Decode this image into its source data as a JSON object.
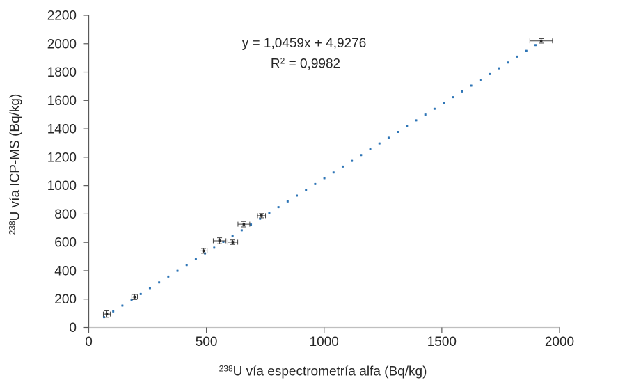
{
  "chart_data": {
    "type": "scatter",
    "title": "",
    "xlabel": "²³⁸U vía espectrometría alfa (Bq/kg)",
    "ylabel": "²³⁸U vía ICP-MS (Bq/kg)",
    "xlabel_sup": "238",
    "xlabel_rest": "U vía espectrometría alfa (Bq/kg)",
    "ylabel_sup": "238",
    "ylabel_rest": "U vía ICP-MS (Bq/kg)",
    "xlim": [
      0,
      2000
    ],
    "ylim": [
      0,
      2200
    ],
    "xticks": [
      0,
      500,
      1000,
      1500,
      2000
    ],
    "yticks": [
      0,
      200,
      400,
      600,
      800,
      1000,
      1200,
      1400,
      1600,
      1800,
      2000,
      2200
    ],
    "grid": false,
    "legend": "none",
    "annotation": {
      "equation": "y = 1,0459x + 4,9276",
      "r_squared": "R² = 0,9982",
      "r2_base": "R",
      "r2_sup": "2",
      "r2_rest": " = 0,9982"
    },
    "trendline": {
      "style": "dotted",
      "color": "#2E75B6",
      "slope": 1.0459,
      "intercept": 4.9276,
      "x_start": 65,
      "x_end": 1898,
      "x_step": 39
    },
    "points": [
      {
        "x": 77,
        "y": 95,
        "xerr": 15,
        "yerr": 23
      },
      {
        "x": 195,
        "y": 215,
        "xerr": 12,
        "yerr": 18
      },
      {
        "x": 488,
        "y": 540,
        "xerr": 15,
        "yerr": 17
      },
      {
        "x": 556,
        "y": 611,
        "xerr": 27,
        "yerr": 21
      },
      {
        "x": 612,
        "y": 601,
        "xerr": 21,
        "yerr": 16
      },
      {
        "x": 659,
        "y": 728,
        "xerr": 25,
        "yerr": 19
      },
      {
        "x": 734,
        "y": 788,
        "xerr": 17,
        "yerr": 15
      },
      {
        "x": 1922,
        "y": 2020,
        "xerr": 48,
        "yerr": 16
      }
    ],
    "colors": {
      "point": "#262626",
      "error_bar": "#404040",
      "x_axis": "#BFBFBF",
      "y_axis": "#595959",
      "tick": "#595959",
      "text": "#262626",
      "trend_dot": "#2E75B6"
    }
  }
}
